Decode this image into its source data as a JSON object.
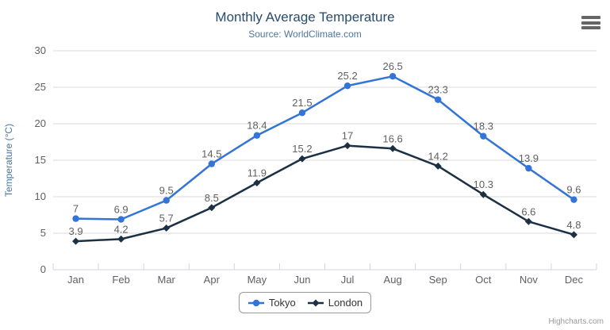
{
  "chart": {
    "credits_label": "Highcharts.com"
  },
  "icons": {
    "context_menu": "hamburger-menu-icon"
  },
  "colors": {
    "title": "#274b6d",
    "subtitle": "#4d759e",
    "axis_title": "#4d759e",
    "axis_labels": "#606060",
    "data_labels": "#606060",
    "gridline": "#d8d8d8",
    "axis_line": "#ccd6eb",
    "legend_border": "#999999",
    "legend_text": "#333333",
    "menu_icon": "#666666",
    "credits_text": "#999999",
    "background": "#ffffff"
  },
  "chart_data": {
    "type": "line",
    "title": "Monthly Average Temperature",
    "subtitle": "Source: WorldClimate.com",
    "xlabel": "",
    "ylabel": "Temperature (°C)",
    "categories": [
      "Jan",
      "Feb",
      "Mar",
      "Apr",
      "May",
      "Jun",
      "Jul",
      "Aug",
      "Sep",
      "Oct",
      "Nov",
      "Dec"
    ],
    "series": [
      {
        "name": "Tokyo",
        "color": "#3374d6",
        "marker": "circle",
        "values": [
          7,
          6.9,
          9.5,
          14.5,
          18.4,
          21.5,
          25.2,
          26.5,
          23.3,
          18.3,
          13.9,
          9.6
        ]
      },
      {
        "name": "London",
        "color": "#1c3044",
        "marker": "diamond",
        "values": [
          3.9,
          4.2,
          5.7,
          8.5,
          11.9,
          15.2,
          17,
          16.6,
          14.2,
          10.3,
          6.6,
          4.8
        ]
      }
    ],
    "ylim": [
      0,
      30
    ],
    "yticks": [
      0,
      5,
      10,
      15,
      20,
      25,
      30
    ],
    "grid": true,
    "data_labels": true,
    "legend_position": "bottom-center"
  }
}
